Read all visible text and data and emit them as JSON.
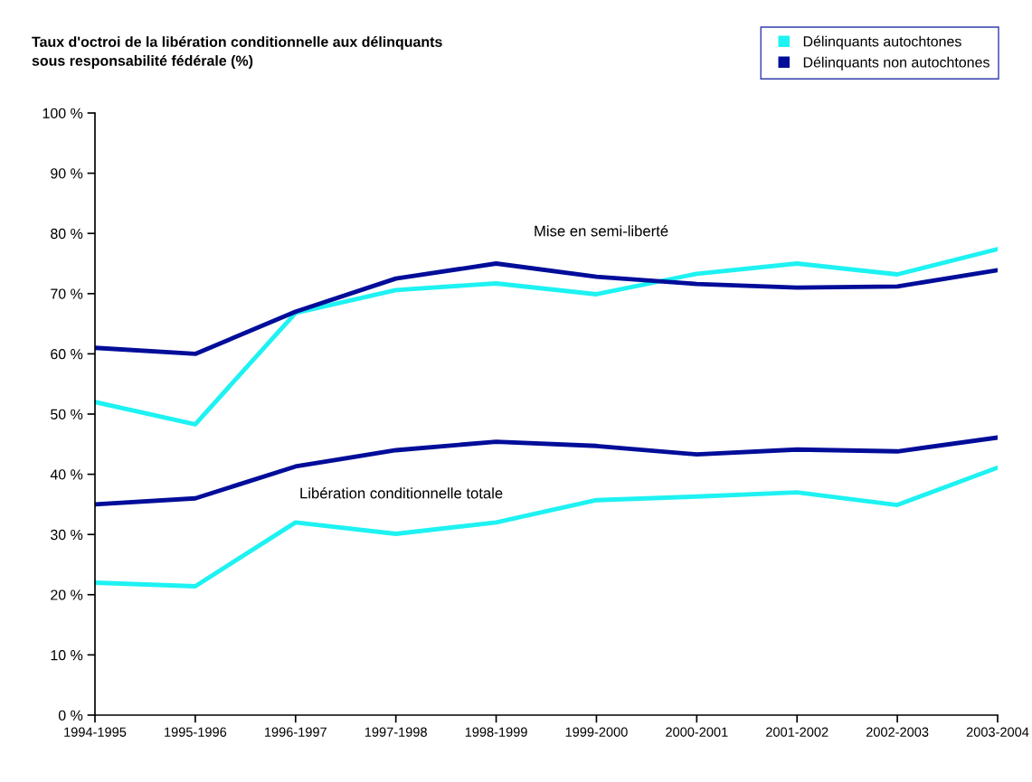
{
  "chart_data": {
    "type": "line",
    "title": "Taux d'octroi de la libération conditionnelle aux délinquants\nsous responsabilité fédérale (%)",
    "categories": [
      "1994-1995",
      "1995-1996",
      "1996-1997",
      "1997-1998",
      "1998-1999",
      "1999-2000",
      "2000-2001",
      "2001-2002",
      "2002-2003",
      "2003-2004"
    ],
    "series": [
      {
        "name": "Délinquants autochtones",
        "color": "#1ef2f2",
        "values": [
          52,
          48.3,
          66.8,
          70.6,
          71.7,
          69.9,
          73.3,
          75,
          73.2,
          77.4
        ]
      },
      {
        "name": "Délinquants non autochtones",
        "color": "#000d99",
        "values": [
          61,
          60,
          67,
          72.5,
          75,
          72.8,
          71.6,
          71,
          71.2,
          73.9
        ]
      },
      {
        "color": "#000d99",
        "values": [
          35,
          36,
          41.3,
          44,
          45.4,
          44.7,
          43.3,
          44.1,
          43.8,
          46.1
        ]
      },
      {
        "color": "#1ef2f2",
        "values": [
          22,
          21.4,
          32,
          30.1,
          32,
          35.7,
          36.3,
          37,
          34.9,
          41.1
        ]
      }
    ],
    "annotations": [
      "Mise en semi-liberté",
      "Libération conditionnelle totale"
    ],
    "ylim": [
      0,
      100
    ],
    "yticks": [
      {
        "value": 0,
        "label": "0 %"
      },
      {
        "value": 10,
        "label": "10 %"
      },
      {
        "value": 20,
        "label": "20 %"
      },
      {
        "value": 30,
        "label": "30 %"
      },
      {
        "value": 40,
        "label": "40 %"
      },
      {
        "value": 50,
        "label": "50 %"
      },
      {
        "value": 60,
        "label": "60 %"
      },
      {
        "value": 70,
        "label": "70 %"
      },
      {
        "value": 80,
        "label": "80 %"
      },
      {
        "value": 90,
        "label": "90 %"
      },
      {
        "value": 100,
        "label": "100 %"
      }
    ],
    "grid": false,
    "legend": "top right",
    "marker": "none",
    "line_style": "solid"
  }
}
